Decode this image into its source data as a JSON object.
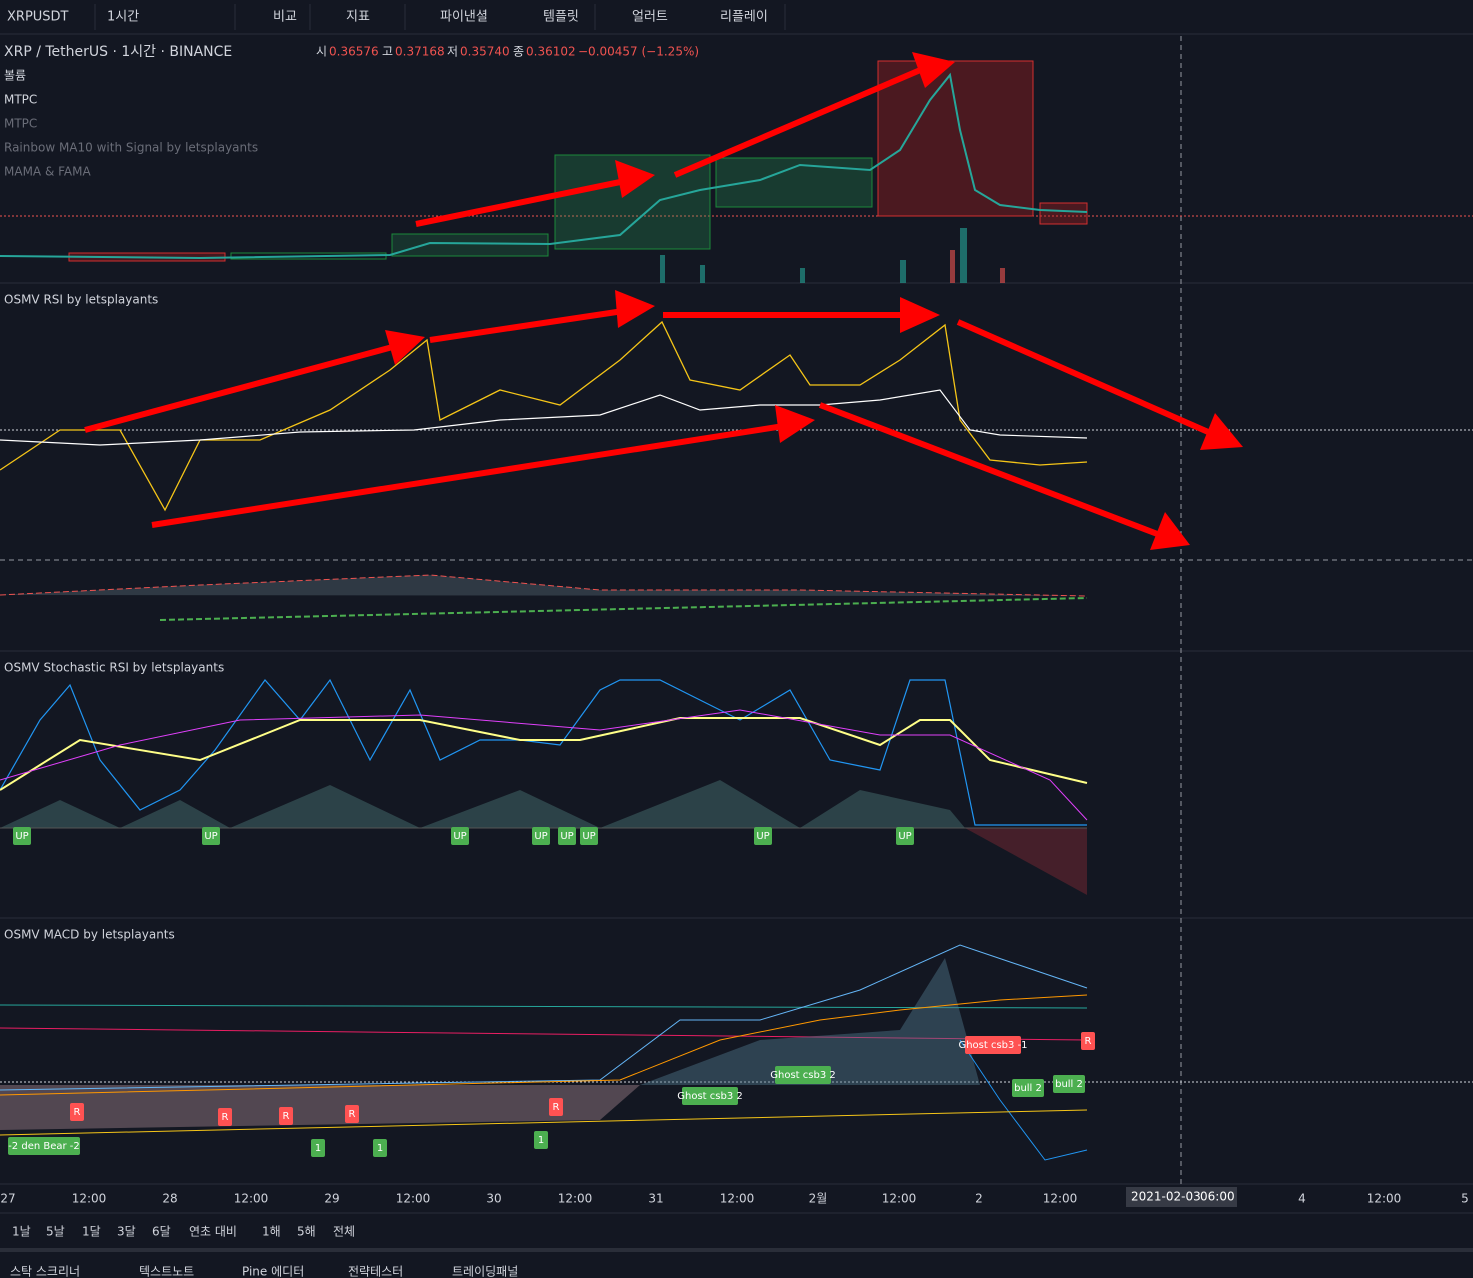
{
  "toolbar": {
    "symbol": "XRPUSDT",
    "interval": "1시간",
    "items": [
      "비교",
      "지표",
      "파이낸셜",
      "템플릿",
      "얼러트",
      "리플레이"
    ]
  },
  "legend": {
    "title": "XRP / TetherUS · 1시간 · BINANCE",
    "ohlc": [
      {
        "label": "시",
        "value": "0.36576"
      },
      {
        "label": "고",
        "value": "0.37168"
      },
      {
        "label": "저",
        "value": "0.35740"
      },
      {
        "label": "종",
        "value": "0.36102"
      }
    ],
    "change": "−0.00457 (−1.25%)",
    "indicators": [
      "볼륨",
      "MTPC",
      "MTPC",
      "Rainbow MA10 with Signal by letsplayants",
      "MAMA & FAMA"
    ]
  },
  "panes": [
    "OSMV RSI by letsplayants",
    "OSMV Stochastic RSI by letsplayants",
    "OSMV MACD by letsplayants"
  ],
  "stoch_markers": [
    "UP",
    "UP",
    "UP",
    "UP",
    "UP",
    "UP",
    "UP",
    "UP"
  ],
  "macd_markers": [
    "-2 den Bear -2",
    "R",
    "R",
    "R",
    "R",
    "R",
    "1",
    "1",
    "1",
    "Ghost csb3 2",
    "Ghost csb3 2",
    "Ghost csb3 -1",
    "bull 2",
    "bull 2",
    "R"
  ],
  "time_axis": {
    "labels": [
      "27",
      "12:00",
      "28",
      "12:00",
      "29",
      "12:00",
      "30",
      "12:00",
      "31",
      "12:00",
      "2월",
      "12:00",
      "2",
      "12:00",
      "4",
      "12:00",
      "5"
    ],
    "cursor_date": "2021-02-03",
    "cursor_time": "06:00"
  },
  "ranges": [
    "1날",
    "5날",
    "1달",
    "3달",
    "6달",
    "연초 대비",
    "1해",
    "5해",
    "전체"
  ],
  "tabs": [
    "스탁 스크리너",
    "텍스트노트",
    "Pine 에디터",
    "전략테스터",
    "트레이딩패널"
  ]
}
